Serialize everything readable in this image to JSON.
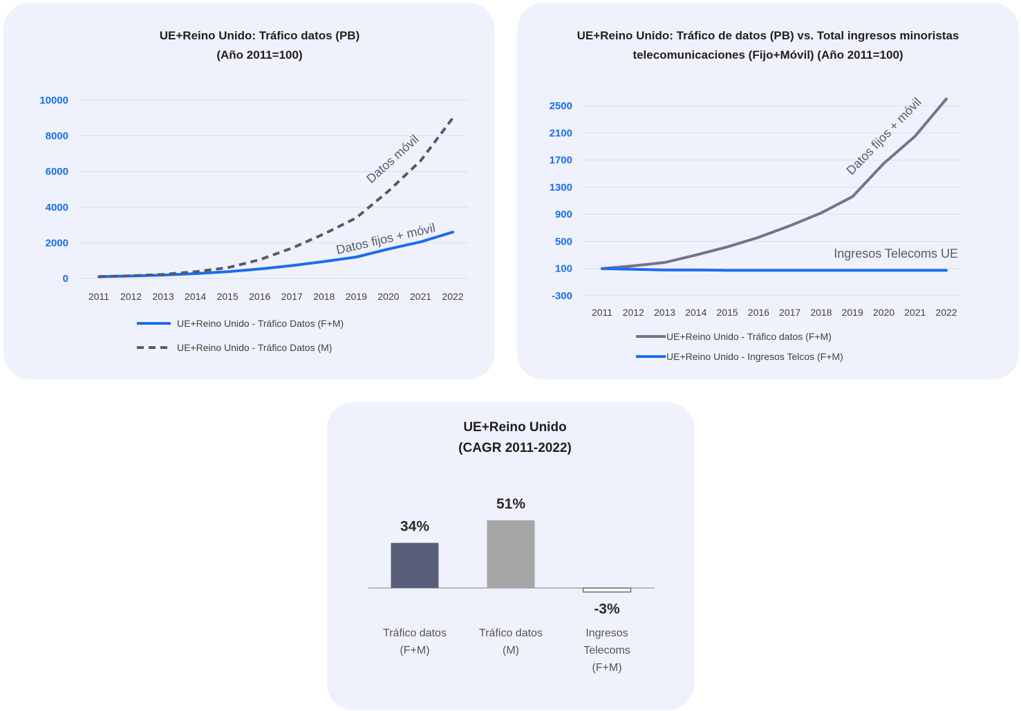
{
  "chart_data": [
    {
      "type": "line",
      "title_lines": [
        "UE+Reino Unido: Tráfico datos (PB)",
        "(Año 2011=100)"
      ],
      "x": [
        "2011",
        "2012",
        "2013",
        "2014",
        "2015",
        "2016",
        "2017",
        "2018",
        "2019",
        "2020",
        "2021",
        "2022"
      ],
      "ylim": [
        0,
        10000
      ],
      "yticks": [
        "0",
        "2000",
        "4000",
        "6000",
        "8000",
        "10000"
      ],
      "grid": true,
      "legend_position": "bottom",
      "series": [
        {
          "name": "UE+Reino Unido - Tráfico Datos (F+M)",
          "color": "#1a6ef0",
          "dash": false,
          "values": [
            100,
            140,
            190,
            270,
            380,
            530,
            720,
            950,
            1200,
            1650,
            2050,
            2600
          ]
        },
        {
          "name": "UE+Reino Unido - Tráfico Datos (M)",
          "color": "#555a6e",
          "dash": true,
          "values": [
            100,
            150,
            230,
            380,
            600,
            1050,
            1700,
            2500,
            3400,
            4900,
            6600,
            9000
          ]
        }
      ],
      "annotations": [
        "Datos móvil",
        "Datos fijos + móvil"
      ]
    },
    {
      "type": "line",
      "title_lines": [
        "UE+Reino Unido: Tráfico de datos (PB) vs. Total ingresos minoristas",
        "telecomunicaciones (Fijo+Móvil)  (Año 2011=100)"
      ],
      "x": [
        "2011",
        "2012",
        "2013",
        "2014",
        "2015",
        "2016",
        "2017",
        "2018",
        "2019",
        "2020",
        "2021",
        "2022"
      ],
      "ylim": [
        -300,
        2500
      ],
      "yticks": [
        "-300",
        "100",
        "500",
        "900",
        "1300",
        "1700",
        "2100",
        "2500"
      ],
      "grid": true,
      "legend_position": "bottom",
      "series": [
        {
          "name": "UE+Reino Unido - Tráfico datos (F+M)",
          "color": "#70758a",
          "dash": false,
          "values": [
            100,
            140,
            190,
            300,
            420,
            560,
            730,
            920,
            1160,
            1650,
            2050,
            2600
          ]
        },
        {
          "name": "UE+Reino Unido - Ingresos Telcos (F+M)",
          "color": "#1a6ef0",
          "dash": false,
          "values": [
            100,
            90,
            80,
            80,
            75,
            75,
            75,
            75,
            75,
            75,
            75,
            75
          ]
        }
      ],
      "annotations": [
        "Datos fijos + móvil",
        "Ingresos Telecoms UE"
      ]
    },
    {
      "type": "bar",
      "title_lines": [
        "UE+Reino Unido",
        "(CAGR 2011-2022)"
      ],
      "categories": [
        [
          "Tráfico datos",
          "(F+M)"
        ],
        [
          "Tráfico datos",
          "(M)"
        ],
        [
          "Ingresos",
          "Telecoms",
          "(F+M)"
        ]
      ],
      "values": [
        34,
        51,
        -3
      ],
      "value_labels": [
        "34%",
        "51%",
        "-3%"
      ],
      "colors": [
        "#595f78",
        "#a6a6a6",
        "#ffffff"
      ],
      "ylim": [
        -5,
        60
      ]
    }
  ]
}
